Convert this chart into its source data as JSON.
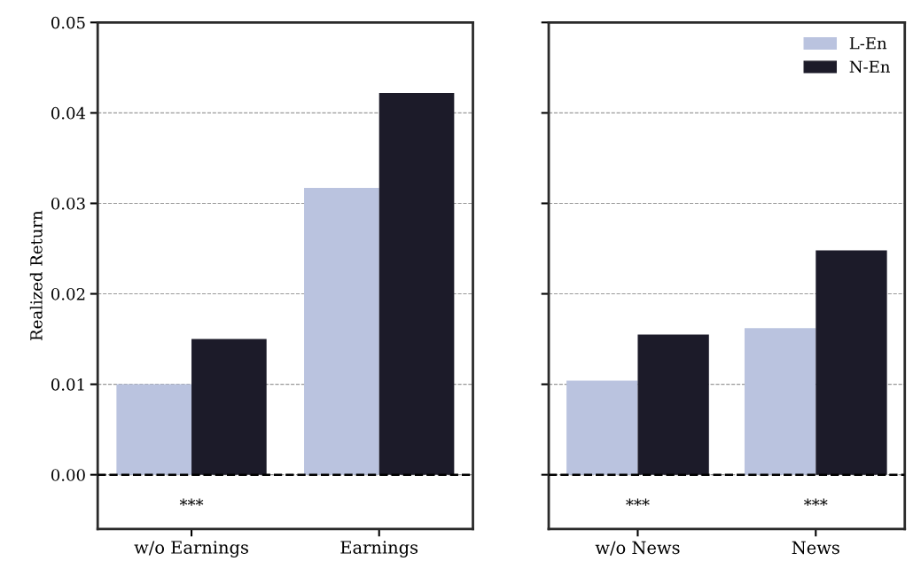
{
  "chart_data": [
    {
      "type": "bar",
      "ylabel": "Realized Return",
      "categories": [
        "w/o Earnings",
        "Earnings"
      ],
      "series": [
        {
          "color": "#bac3df",
          "values": [
            0.01,
            0.0317
          ]
        },
        {
          "color": "#1c1b29",
          "values": [
            0.015,
            0.0422
          ]
        }
      ],
      "ylim": [
        -0.006,
        0.05
      ],
      "yticks": [
        {
          "value": 0,
          "label": "0.00"
        },
        0.01,
        0.02,
        0.03,
        0.04,
        0.05
      ],
      "grid": "y",
      "ref_lines": [
        {
          "axis": "y",
          "value": 0,
          "color": "#000000",
          "line_style": "dashed"
        }
      ],
      "annotations": [
        "***"
      ]
    },
    {
      "type": "bar",
      "categories": [
        "w/o News",
        "News"
      ],
      "series": [
        {
          "name": "L-En",
          "color": "#bac3df",
          "values": [
            0.0104,
            0.0162
          ]
        },
        {
          "name": "N-En",
          "color": "#1c1b29",
          "values": [
            0.0155,
            0.0248
          ]
        }
      ],
      "ylim": [
        -0.006,
        0.05
      ],
      "tick_labels": "x",
      "yticks": [
        0,
        0.01,
        0.02,
        0.03,
        0.04,
        0.05
      ],
      "grid": "y",
      "legend": "top right",
      "ref_lines": [
        {
          "axis": "y",
          "value": 0,
          "color": "#000000",
          "line_style": "dashed"
        }
      ],
      "annotations": [
        "***",
        "***"
      ]
    }
  ]
}
